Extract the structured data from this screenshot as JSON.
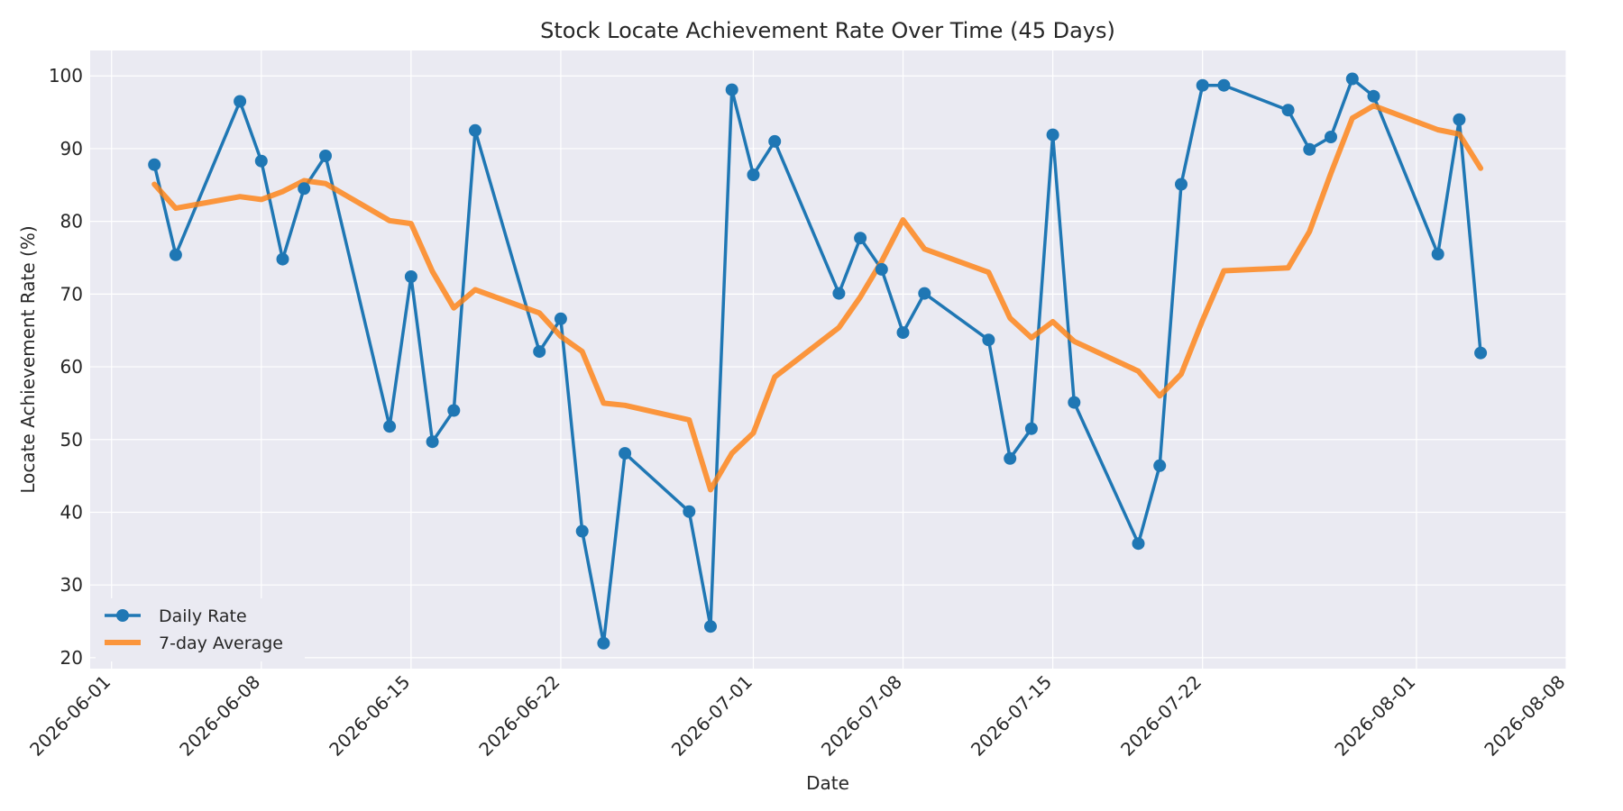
{
  "chart_data": {
    "type": "line",
    "title": "Stock Locate Achievement Rate Over Time (45 Days)",
    "xlabel": "Date",
    "ylabel": "Locate Achievement Rate (%)",
    "xlim": [
      "2026-05-31",
      "2026-08-08"
    ],
    "ylim": [
      18.5,
      103.5
    ],
    "x_ticks": [
      "2026-06-01",
      "2026-06-08",
      "2026-06-15",
      "2026-06-22",
      "2026-07-01",
      "2026-07-08",
      "2026-07-15",
      "2026-07-22",
      "2026-08-01",
      "2026-08-08"
    ],
    "y_ticks": [
      20,
      30,
      40,
      50,
      60,
      70,
      80,
      90,
      100
    ],
    "grid": true,
    "legend_position": "lower-left",
    "series": [
      {
        "name": "Daily Rate",
        "color": "#1f77b4",
        "style": "line-markers",
        "points": [
          [
            "2026-06-03",
            87.8
          ],
          [
            "2026-06-04",
            75.4
          ],
          [
            "2026-06-07",
            96.5
          ],
          [
            "2026-06-08",
            88.3
          ],
          [
            "2026-06-09",
            74.8
          ],
          [
            "2026-06-10",
            84.5
          ],
          [
            "2026-06-11",
            89.0
          ],
          [
            "2026-06-14",
            51.8
          ],
          [
            "2026-06-15",
            72.4
          ],
          [
            "2026-06-16",
            49.7
          ],
          [
            "2026-06-17",
            54.0
          ],
          [
            "2026-06-18",
            92.5
          ],
          [
            "2026-06-21",
            62.1
          ],
          [
            "2026-06-22",
            66.6
          ],
          [
            "2026-06-23",
            37.4
          ],
          [
            "2026-06-24",
            22.0
          ],
          [
            "2026-06-25",
            48.1
          ],
          [
            "2026-06-28",
            40.1
          ],
          [
            "2026-06-29",
            24.3
          ],
          [
            "2026-06-30",
            98.1
          ],
          [
            "2026-07-01",
            86.4
          ],
          [
            "2026-07-02",
            91.0
          ],
          [
            "2026-07-05",
            70.1
          ],
          [
            "2026-07-06",
            77.7
          ],
          [
            "2026-07-07",
            73.4
          ],
          [
            "2026-07-08",
            64.7
          ],
          [
            "2026-07-09",
            70.1
          ],
          [
            "2026-07-12",
            63.7
          ],
          [
            "2026-07-13",
            47.4
          ],
          [
            "2026-07-14",
            51.5
          ],
          [
            "2026-07-15",
            91.9
          ],
          [
            "2026-07-16",
            55.1
          ],
          [
            "2026-07-19",
            35.7
          ],
          [
            "2026-07-20",
            46.4
          ],
          [
            "2026-07-21",
            85.1
          ],
          [
            "2026-07-22",
            98.7
          ],
          [
            "2026-07-23",
            98.7
          ],
          [
            "2026-07-26",
            95.3
          ],
          [
            "2026-07-27",
            89.9
          ],
          [
            "2026-07-28",
            91.6
          ],
          [
            "2026-07-29",
            99.6
          ],
          [
            "2026-07-30",
            97.2
          ],
          [
            "2026-08-02",
            75.5
          ],
          [
            "2026-08-03",
            94.0
          ],
          [
            "2026-08-04",
            61.9
          ]
        ]
      },
      {
        "name": "7-day Average",
        "color": "#ff7f0e",
        "style": "line",
        "points": [
          [
            "2026-06-03",
            85.1
          ],
          [
            "2026-06-04",
            81.8
          ],
          [
            "2026-06-07",
            83.4
          ],
          [
            "2026-06-08",
            83.0
          ],
          [
            "2026-06-09",
            84.1
          ],
          [
            "2026-06-10",
            85.6
          ],
          [
            "2026-06-11",
            85.2
          ],
          [
            "2026-06-14",
            80.1
          ],
          [
            "2026-06-15",
            79.7
          ],
          [
            "2026-06-16",
            73.1
          ],
          [
            "2026-06-17",
            68.1
          ],
          [
            "2026-06-18",
            70.6
          ],
          [
            "2026-06-21",
            67.4
          ],
          [
            "2026-06-22",
            64.2
          ],
          [
            "2026-06-23",
            62.1
          ],
          [
            "2026-06-24",
            55.0
          ],
          [
            "2026-06-25",
            54.7
          ],
          [
            "2026-06-28",
            52.7
          ],
          [
            "2026-06-29",
            43.1
          ],
          [
            "2026-06-30",
            48.1
          ],
          [
            "2026-07-01",
            50.9
          ],
          [
            "2026-07-02",
            58.6
          ],
          [
            "2026-07-05",
            65.4
          ],
          [
            "2026-07-06",
            69.6
          ],
          [
            "2026-07-07",
            74.5
          ],
          [
            "2026-07-08",
            80.2
          ],
          [
            "2026-07-09",
            76.2
          ],
          [
            "2026-07-12",
            73.0
          ],
          [
            "2026-07-13",
            66.7
          ],
          [
            "2026-07-14",
            64.0
          ],
          [
            "2026-07-15",
            66.2
          ],
          [
            "2026-07-16",
            63.5
          ],
          [
            "2026-07-19",
            59.4
          ],
          [
            "2026-07-20",
            56.0
          ],
          [
            "2026-07-21",
            59.0
          ],
          [
            "2026-07-22",
            66.4
          ],
          [
            "2026-07-23",
            73.2
          ],
          [
            "2026-07-26",
            73.6
          ],
          [
            "2026-07-27",
            78.6
          ],
          [
            "2026-07-28",
            86.6
          ],
          [
            "2026-07-29",
            94.2
          ],
          [
            "2026-07-30",
            95.9
          ],
          [
            "2026-08-02",
            92.6
          ],
          [
            "2026-08-03",
            92.0
          ],
          [
            "2026-08-04",
            87.3
          ]
        ]
      }
    ]
  }
}
